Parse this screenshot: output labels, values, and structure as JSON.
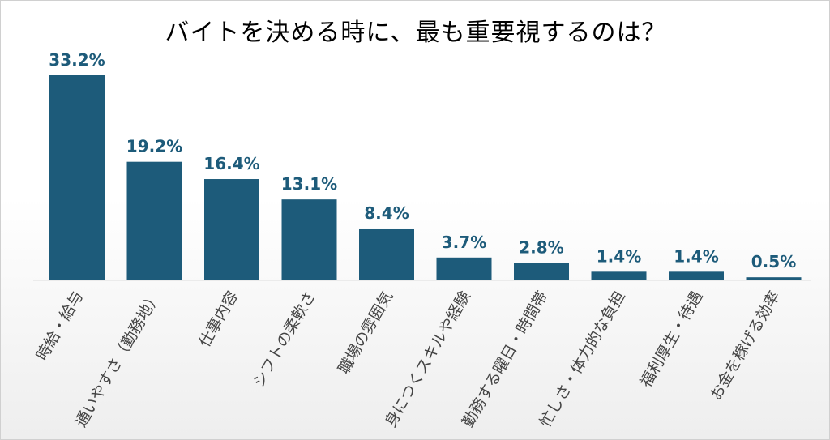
{
  "chart_data": {
    "type": "bar",
    "title": "バイトを決める時に、最も重要視するのは？",
    "categories": [
      "時給・給与",
      "通いやすさ（勤務地）",
      "仕事内容",
      "シフトの柔軟さ",
      "職場の雰囲気",
      "身につくスキルや経験",
      "勤務する曜日・時間帯",
      "忙しさ・体力的な負担",
      "福利厚生・待遇",
      "お金を稼げる効率"
    ],
    "values": [
      33.2,
      19.2,
      16.4,
      13.1,
      8.4,
      3.7,
      2.8,
      1.4,
      1.4,
      0.5
    ],
    "data_labels": [
      "33.2%",
      "19.2%",
      "16.4%",
      "13.1%",
      "8.4%",
      "3.7%",
      "2.8%",
      "1.4%",
      "1.4%",
      "0.5%"
    ],
    "unit": "%",
    "ylim": [
      0,
      33.2
    ],
    "grid": false,
    "legend": "none",
    "bar_color": "#1d5b7a",
    "label_color": "#1d5b7a"
  }
}
